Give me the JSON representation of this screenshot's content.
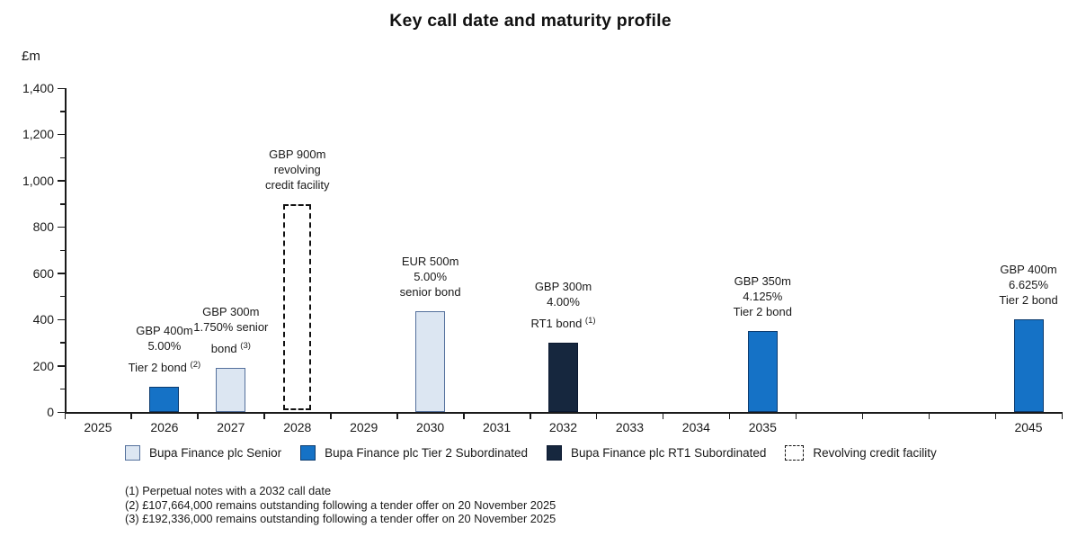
{
  "title": "Key call date and maturity profile",
  "chart_data": {
    "type": "bar",
    "title": "Key call date and maturity profile",
    "ylabel": "£m",
    "xlabel": "",
    "ylim": [
      0,
      1400
    ],
    "y_major_tick_step": 200,
    "y_minor_tick_step": 100,
    "y_tick_labels": [
      "0",
      "200",
      "400",
      "600",
      "800",
      "1,000",
      "1,200",
      "1,400"
    ],
    "x_slots": [
      "2025",
      "2026",
      "2027",
      "2028",
      "2029",
      "2030",
      "2031",
      "2032",
      "2033",
      "2034",
      "2035",
      "",
      "",
      "",
      "2045"
    ],
    "grid": false,
    "legend_position": "bottom",
    "bars": [
      {
        "year": "2026",
        "series": "tier2",
        "value": 107.664,
        "annotation_lines": [
          "GBP 400m",
          "5.00%"
        ],
        "annotation_last_line": "Tier 2 bond",
        "footnote_ref": "(2)"
      },
      {
        "year": "2027",
        "series": "senior",
        "value": 192.336,
        "annotation_lines": [
          "GBP 300m",
          "1.750% senior"
        ],
        "annotation_last_line": "bond",
        "footnote_ref": "(3)"
      },
      {
        "year": "2028",
        "series": "rcf",
        "value": 900,
        "annotation_lines": [
          "GBP 900m",
          "revolving",
          "credit facility"
        ],
        "annotation_last_line": "",
        "footnote_ref": ""
      },
      {
        "year": "2030",
        "series": "senior",
        "value": 435,
        "annotation_lines": [
          "EUR 500m",
          "5.00%",
          "senior bond"
        ],
        "annotation_last_line": "",
        "footnote_ref": ""
      },
      {
        "year": "2032",
        "series": "rt1",
        "value": 300,
        "annotation_lines": [
          "GBP 300m",
          "4.00%"
        ],
        "annotation_last_line": "RT1 bond",
        "footnote_ref": "(1)"
      },
      {
        "year": "2035",
        "series": "tier2",
        "value": 350,
        "annotation_lines": [
          "GBP 350m",
          "4.125%",
          "Tier 2 bond"
        ],
        "annotation_last_line": "",
        "footnote_ref": ""
      },
      {
        "year": "2045",
        "series": "tier2",
        "value": 400,
        "annotation_lines": [
          "GBP 400m",
          "6.625%",
          "Tier 2 bond"
        ],
        "annotation_last_line": "",
        "footnote_ref": ""
      }
    ]
  },
  "legend": {
    "items": [
      {
        "key": "senior",
        "label": "Bupa Finance plc Senior"
      },
      {
        "key": "tier2",
        "label": "Bupa Finance plc Tier 2 Subordinated"
      },
      {
        "key": "rt1",
        "label": "Bupa Finance plc RT1 Subordinated"
      },
      {
        "key": "rcf",
        "label": "Revolving credit facility"
      }
    ]
  },
  "colors": {
    "senior_fill": "#DCE6F2",
    "senior_border": "#54709C",
    "tier2_fill": "#1572C6",
    "tier2_border": "#0C3B6E",
    "rt1_fill": "#16273E",
    "rt1_border": "#0B1830",
    "rcf_border": "#111111",
    "axis": "#1A1A1A",
    "text": "#1A1A1A"
  },
  "footnotes": [
    "(1) Perpetual notes with a 2032 call date",
    "(2) £107,664,000 remains outstanding following a tender offer on 20 November 2025",
    "(3) £192,336,000 remains outstanding following a tender offer on 20 November 2025"
  ]
}
